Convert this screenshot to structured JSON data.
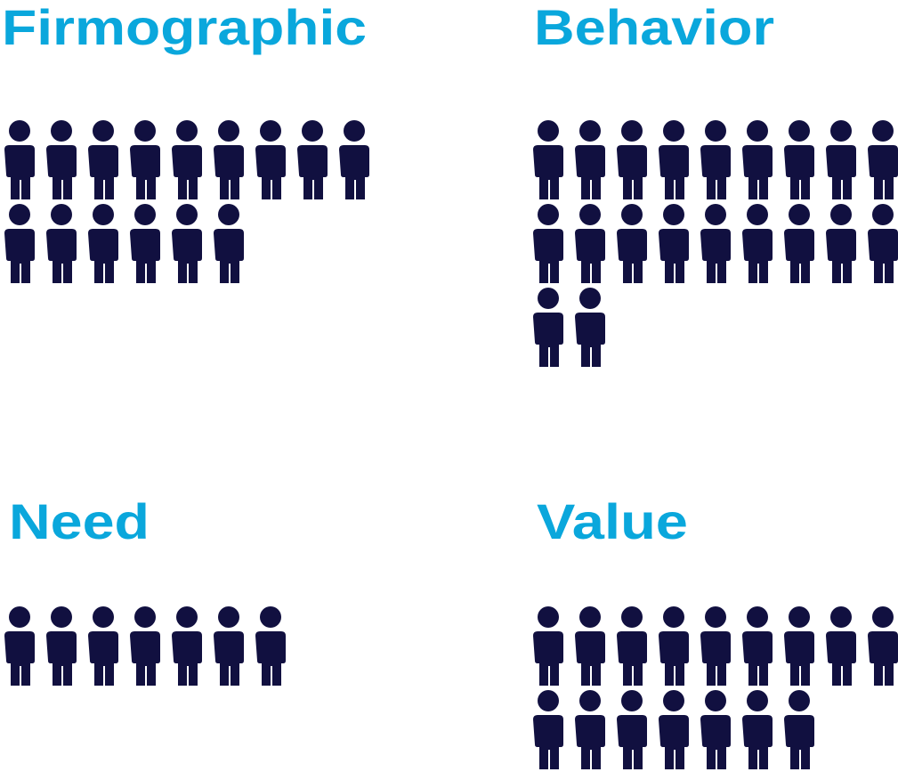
{
  "chart_data": {
    "type": "pictograph",
    "categories": [
      "Firmographic",
      "Behavior",
      "Need",
      "Value"
    ],
    "values": [
      15,
      20,
      7,
      16
    ],
    "color": "#111040",
    "label_color": "#0aa7dc",
    "per_row": 9
  }
}
